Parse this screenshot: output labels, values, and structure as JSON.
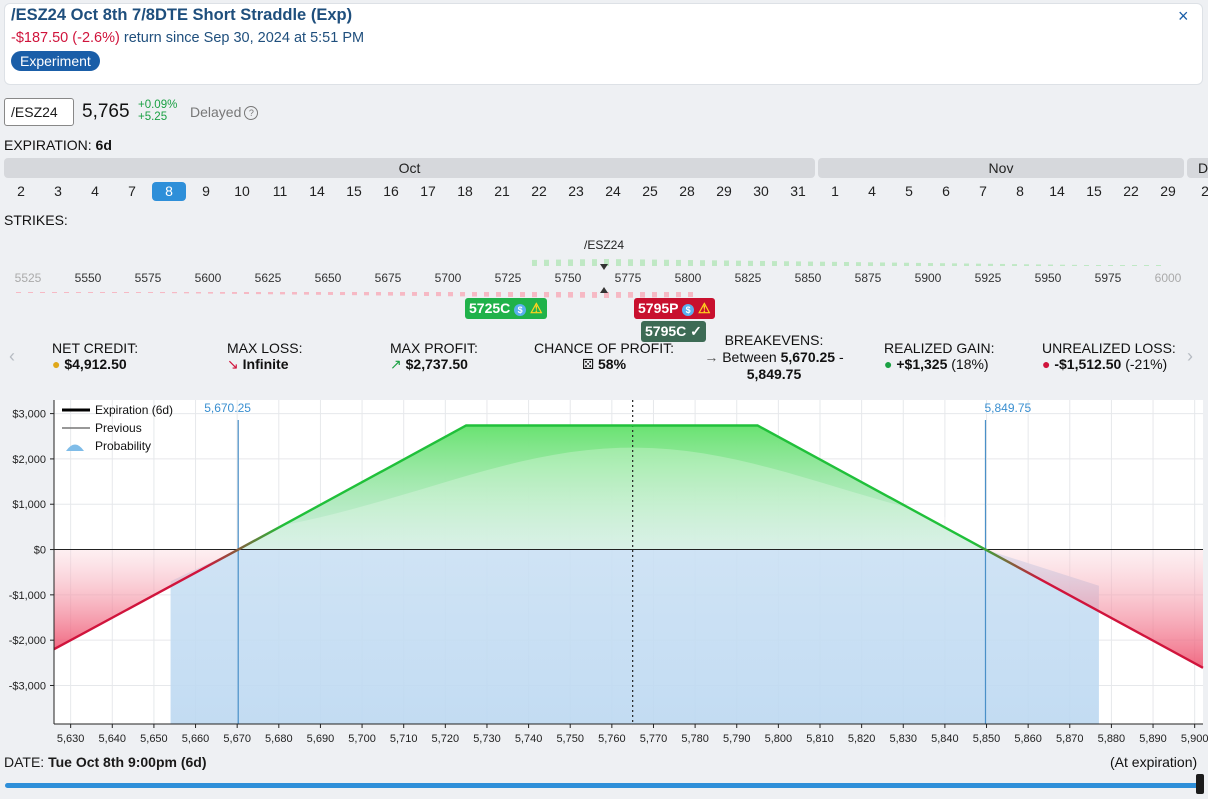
{
  "header": {
    "title": "/ESZ24 Oct 8th 7/8DTE Short Straddle (Exp)",
    "return_amount": "-$187.50",
    "return_pct": "(-2.6%)",
    "return_text": "return since Sep 30, 2024 at 5:51 PM",
    "badge": "Experiment",
    "close_glyph": "×"
  },
  "quote": {
    "symbol": "/ESZ24",
    "price": "5,765",
    "change_pct": "+0.09%",
    "change": "+5.25",
    "delayed": "Delayed",
    "help_glyph": "?"
  },
  "expiration": {
    "label": "EXPIRATION:",
    "value": "6d"
  },
  "calendar": {
    "months": [
      "Oct",
      "Nov",
      "D"
    ],
    "days": [
      "2",
      "3",
      "4",
      "7",
      "8",
      "9",
      "10",
      "11",
      "14",
      "15",
      "16",
      "17",
      "18",
      "21",
      "22",
      "23",
      "24",
      "25",
      "28",
      "29",
      "30",
      "31",
      "1",
      "4",
      "5",
      "6",
      "7",
      "8",
      "14",
      "15",
      "22",
      "29",
      "2"
    ],
    "selected_index": 4
  },
  "strikes": {
    "label": "STRIKES:",
    "underlying": "/ESZ24",
    "ticks": [
      "5525",
      "5550",
      "5575",
      "5600",
      "5625",
      "5650",
      "5675",
      "5700",
      "5725",
      "5750",
      "5775",
      "5800",
      "5825",
      "5850",
      "5875",
      "5900",
      "5925",
      "5950",
      "5975",
      "6000"
    ],
    "legs": [
      {
        "label": "5725C",
        "color": "#20b24a"
      },
      {
        "label": "5795P",
        "color": "#c8102e"
      },
      {
        "label": "5795C",
        "color": "#3d6b55"
      }
    ],
    "icons": [
      "dollar-icon",
      "warning-icon",
      "check-icon"
    ]
  },
  "stats": {
    "net_credit": {
      "label": "NET CREDIT:",
      "value": "$4,912.50"
    },
    "max_loss": {
      "label": "MAX LOSS:",
      "value": "Infinite"
    },
    "max_profit": {
      "label": "MAX PROFIT:",
      "value": "$2,737.50"
    },
    "chance": {
      "label": "CHANCE OF PROFIT:",
      "value": "58%"
    },
    "breakevens": {
      "label": "BREAKEVENS:",
      "prefix": "Between",
      "low": "5,670.25",
      "dash": "-",
      "high": "5,849.75"
    },
    "realized": {
      "label": "REALIZED GAIN:",
      "value": "+$1,325",
      "pct": "(18%)"
    },
    "unrealized": {
      "label": "UNREALIZED LOSS:",
      "value": "-$1,512.50",
      "pct": "(-21%)"
    },
    "nav_left": "‹",
    "nav_right": "›"
  },
  "chart_data": {
    "type": "line",
    "legend": [
      "Expiration (6d)",
      "Previous",
      "Probability"
    ],
    "legend_placement": "top-left",
    "xlim": [
      5626,
      5902
    ],
    "ylim": [
      -3850,
      3300
    ],
    "x_ticks": [
      5630,
      5640,
      5650,
      5660,
      5670,
      5680,
      5690,
      5700,
      5710,
      5720,
      5730,
      5740,
      5750,
      5760,
      5770,
      5780,
      5790,
      5800,
      5810,
      5820,
      5830,
      5840,
      5850,
      5860,
      5870,
      5880,
      5890,
      5900
    ],
    "x_tick_labels": [
      "5,630",
      "5,640",
      "5,650",
      "5,660",
      "5,670",
      "5,680",
      "5,690",
      "5,700",
      "5,710",
      "5,720",
      "5,730",
      "5,740",
      "5,750",
      "5,760",
      "5,770",
      "5,780",
      "5,790",
      "5,800",
      "5,810",
      "5,820",
      "5,830",
      "5,840",
      "5,850",
      "5,860",
      "5,870",
      "5,880",
      "5,890",
      "5,900"
    ],
    "y_ticks": [
      3000,
      2000,
      1000,
      0,
      -1000,
      -2000,
      -3000
    ],
    "y_tick_labels": [
      "$3,000",
      "$2,000",
      "$1,000",
      "$0",
      "-$1,000",
      "-$2,000",
      "-$3,000"
    ],
    "series": [
      {
        "name": "Expiration (6d)",
        "x": [
          5626,
          5670.25,
          5725,
          5795,
          5849.75,
          5902
        ],
        "y": [
          -2200,
          0,
          2737.5,
          2737.5,
          0,
          -2610
        ]
      }
    ],
    "current_price": 5765,
    "breakevens": [
      5670.25,
      5849.75
    ],
    "breakeven_labels": [
      "5,670.25",
      "5,849.75"
    ],
    "grid": true
  },
  "date_bar": {
    "label": "DATE:",
    "value": "Tue Oct 8th 9:00pm (6d)",
    "right": "(At expiration)"
  },
  "colors": {
    "accent": "#2e8fd9",
    "profit": "#20c03a",
    "loss": "#d0143c",
    "brand": "#1f4f7d"
  }
}
